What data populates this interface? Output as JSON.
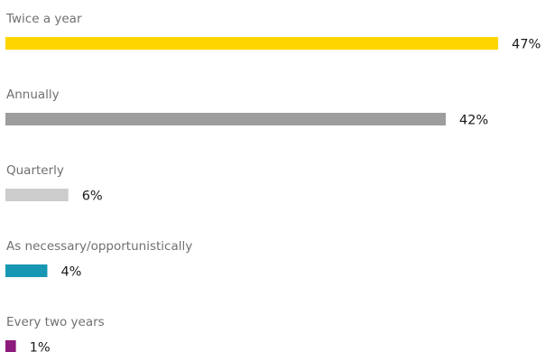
{
  "chart_data": {
    "type": "bar",
    "orientation": "horizontal",
    "categories": [
      "Twice a year",
      "Annually",
      "Quarterly",
      "As necessary/opportunistically",
      "Every two years"
    ],
    "values": [
      47,
      42,
      6,
      4,
      1
    ],
    "value_labels": [
      "47%",
      "42%",
      "6%",
      "4%",
      "1%"
    ],
    "unit": "%",
    "colors": [
      "#ffd500",
      "#9d9d9d",
      "#cccccc",
      "#1797b3",
      "#8d1a7d"
    ],
    "xlim": [
      0,
      47
    ],
    "grid": false,
    "legend": false
  }
}
